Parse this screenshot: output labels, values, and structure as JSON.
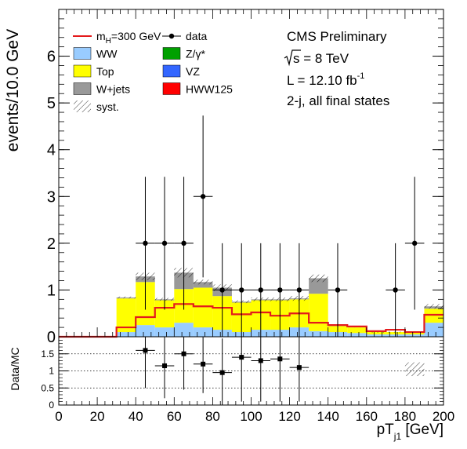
{
  "chart_data": [
    {
      "type": "bar",
      "stacked": true,
      "ylabel": "events/10.0 GeV",
      "xlim": [
        0,
        200
      ],
      "ylim": [
        0,
        7
      ],
      "x_ticks": [
        0,
        20,
        40,
        60,
        80,
        100,
        120,
        140,
        160,
        180,
        200
      ],
      "y_ticks": [
        0,
        1,
        2,
        3,
        4,
        5,
        6
      ],
      "bin_edges": [
        0,
        10,
        20,
        30,
        40,
        50,
        60,
        70,
        80,
        90,
        100,
        110,
        120,
        130,
        140,
        150,
        160,
        170,
        180,
        190,
        200
      ],
      "series": [
        {
          "name": "WW",
          "color": "#99ccff",
          "values": [
            0,
            0,
            0,
            0.1,
            0.25,
            0.2,
            0.3,
            0.2,
            0.15,
            0.1,
            0.15,
            0.15,
            0.2,
            0.12,
            0.1,
            0.08,
            0.05,
            0.05,
            0.05,
            0.3
          ]
        },
        {
          "name": "Top",
          "color": "#ffff00",
          "values": [
            0,
            0,
            0,
            0.72,
            0.92,
            0.58,
            0.72,
            0.85,
            0.72,
            0.63,
            0.63,
            0.63,
            0.6,
            0.8,
            0.13,
            0.12,
            0.05,
            0.05,
            0.05,
            0.3
          ]
        },
        {
          "name": "W+jets",
          "color": "#999999",
          "values": [
            0,
            0,
            0,
            0.02,
            0.12,
            0.02,
            0.35,
            0.12,
            0.18,
            0.02,
            0.02,
            0.02,
            0.02,
            0.33,
            0.02,
            0.01,
            0,
            0,
            0,
            0.05
          ]
        },
        {
          "name": "Z/γ*",
          "color": "#00a000",
          "values": [
            0,
            0,
            0,
            0,
            0,
            0,
            0,
            0,
            0,
            0,
            0,
            0,
            0,
            0,
            0,
            0,
            0,
            0,
            0,
            0
          ]
        },
        {
          "name": "VZ",
          "color": "#3366ff",
          "values": [
            0,
            0,
            0,
            0,
            0,
            0,
            0,
            0,
            0,
            0,
            0,
            0,
            0,
            0,
            0,
            0,
            0,
            0,
            0,
            0
          ]
        },
        {
          "name": "HWW125",
          "color": "#ff0000",
          "values": [
            0,
            0,
            0,
            0,
            0,
            0,
            0,
            0,
            0,
            0,
            0,
            0,
            0,
            0,
            0,
            0,
            0,
            0,
            0,
            0
          ]
        }
      ],
      "signal": {
        "name": "m_H=300 GeV",
        "color": "#e41a1c",
        "values": [
          0,
          0,
          0,
          0.2,
          0.42,
          0.62,
          0.7,
          0.65,
          0.62,
          0.48,
          0.52,
          0.45,
          0.5,
          0.3,
          0.25,
          0.22,
          0.12,
          0.15,
          0.1,
          0.47
        ]
      },
      "syst_band_half_width": [
        0,
        0,
        0,
        0.02,
        0.08,
        0.03,
        0.1,
        0.05,
        0.07,
        0.03,
        0.04,
        0.04,
        0.05,
        0.08,
        0.01,
        0.01,
        0.01,
        0.01,
        0.01,
        0.05
      ],
      "data": {
        "name": "data",
        "x": [
          45,
          55,
          65,
          75,
          85,
          95,
          105,
          115,
          125,
          145,
          175,
          185
        ],
        "y": [
          2,
          2,
          2,
          3,
          1,
          1,
          1,
          1,
          1,
          1,
          1,
          2
        ],
        "err_up": [
          1.42,
          1.42,
          1.42,
          1.73,
          1,
          1,
          1,
          1,
          1,
          1,
          1,
          1.42
        ],
        "err_down": [
          1.42,
          1.42,
          1.42,
          1.73,
          1,
          1,
          1,
          1,
          1,
          1,
          1,
          1.42
        ]
      },
      "legend": {
        "col1": [
          {
            "label_main": "m",
            "label_sub": "H",
            "label_rest": "=300 GeV",
            "kind": "line",
            "color": "#e41a1c"
          },
          {
            "label": "WW",
            "kind": "box",
            "color": "#99ccff"
          },
          {
            "label": "Top",
            "kind": "box",
            "color": "#ffff00"
          },
          {
            "label": "W+jets",
            "kind": "box",
            "color": "#999999"
          },
          {
            "label": "syst.",
            "kind": "hatch",
            "color": "#000000"
          }
        ],
        "col2": [
          {
            "label": "data",
            "kind": "marker",
            "color": "#000000"
          },
          {
            "label": "Z/γ*",
            "kind": "box",
            "color": "#00a000"
          },
          {
            "label": "VZ",
            "kind": "box",
            "color": "#3366ff"
          },
          {
            "label": "HWW125",
            "kind": "box",
            "color": "#ff0000"
          }
        ]
      },
      "annotations": {
        "title": "CMS Preliminary",
        "energy": "s = 8 TeV",
        "lumi": "L = 12.10 fb",
        "lumi_sup": "-1",
        "selection": "2-j, all final states"
      }
    },
    {
      "type": "scatter",
      "ylabel": "Data/MC",
      "xlabel_main": "pT",
      "xlabel_sub": "j1",
      "xlabel_unit": " [GeV]",
      "xlim": [
        0,
        200
      ],
      "ylim": [
        0,
        2
      ],
      "y_ticks": [
        "0",
        "0.5",
        "1",
        "1.5"
      ],
      "y_tick_values": [
        0,
        0.5,
        1,
        1.5
      ],
      "x_ticks": [
        "0",
        "20",
        "40",
        "60",
        "80",
        "100",
        "120",
        "140",
        "160",
        "180",
        "200"
      ],
      "x_tick_values": [
        0,
        20,
        40,
        60,
        80,
        100,
        120,
        140,
        160,
        180,
        200
      ],
      "grid_dotted_y": [
        0.5,
        1,
        1.5
      ],
      "ratio_points": {
        "x": [
          45,
          55,
          65,
          75,
          85,
          95,
          105,
          115,
          125
        ],
        "y": [
          1.6,
          1.15,
          1.5,
          1.2,
          0.95,
          1.4,
          1.3,
          1.35,
          1.1
        ],
        "err": [
          1.1,
          0.95,
          1.05,
          0.85,
          1.0,
          1.3,
          1.2,
          1.25,
          1.0
        ]
      },
      "syst_band_bins": [
        [
          180,
          190,
          0.85,
          1.25
        ]
      ]
    }
  ]
}
